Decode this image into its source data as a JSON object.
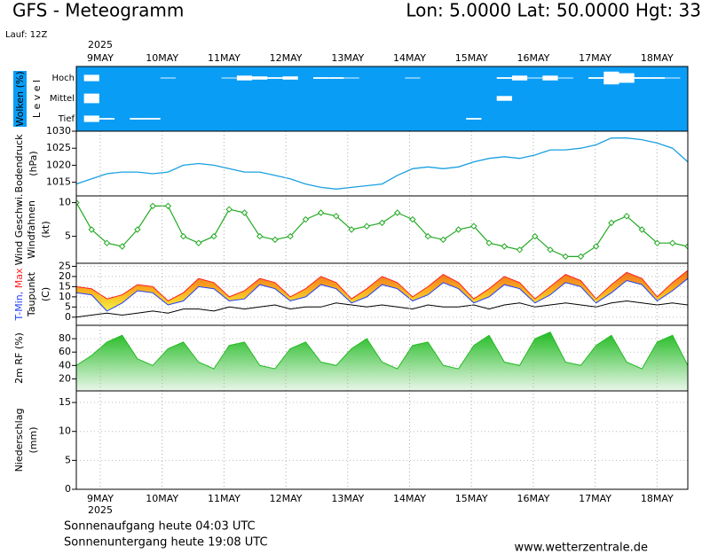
{
  "header": {
    "title": "GFS - Meteogramm",
    "location": "Lon: 5.0000 Lat: 50.0000 Hgt: 33",
    "run": "Lauf: 12Z"
  },
  "time_axis": {
    "year": "2025",
    "dates": [
      "9MAY",
      "10MAY",
      "11MAY",
      "12MAY",
      "13MAY",
      "14MAY",
      "15MAY",
      "16MAY",
      "17MAY",
      "18MAY"
    ]
  },
  "chart_data": [
    {
      "type": "cloud",
      "y_label": "Wolken (%)",
      "level_label": "L e v e l",
      "background": "#0a9df5",
      "color": "#ffffff",
      "series": [
        {
          "name": "Hoch",
          "values": [
            0,
            40,
            0,
            0,
            0,
            0,
            5,
            0,
            0,
            0,
            5,
            30,
            20,
            10,
            20,
            0,
            10,
            10,
            5,
            0,
            0,
            0,
            5,
            0,
            0,
            0,
            0,
            0,
            10,
            30,
            5,
            30,
            5,
            0,
            10,
            80,
            60,
            10,
            10,
            5,
            0
          ]
        },
        {
          "name": "Mittel",
          "values": [
            0,
            60,
            0,
            0,
            0,
            0,
            0,
            0,
            0,
            0,
            0,
            0,
            0,
            0,
            0,
            0,
            0,
            0,
            0,
            0,
            0,
            0,
            0,
            0,
            0,
            0,
            0,
            0,
            30,
            0,
            0,
            0,
            0,
            0,
            0,
            0,
            0,
            0,
            0,
            0,
            0
          ]
        },
        {
          "name": "Tief",
          "values": [
            0,
            40,
            10,
            0,
            10,
            10,
            0,
            0,
            0,
            0,
            0,
            0,
            0,
            0,
            0,
            0,
            0,
            0,
            0,
            0,
            0,
            0,
            0,
            0,
            0,
            0,
            10,
            0,
            0,
            0,
            0,
            0,
            0,
            0,
            0,
            0,
            0,
            0,
            0,
            0,
            0
          ]
        }
      ]
    },
    {
      "type": "line",
      "y_labels": [
        "Bodendruck",
        "(hPa)"
      ],
      "color": "#1aa0e0",
      "values": [
        1014.5,
        1016,
        1017.5,
        1018,
        1018,
        1017.5,
        1018,
        1020,
        1020.5,
        1020,
        1019,
        1018,
        1018,
        1017,
        1016,
        1014.5,
        1013.5,
        1013,
        1013.5,
        1014,
        1014.5,
        1017,
        1019,
        1019.5,
        1019,
        1019.5,
        1021,
        1022,
        1022.5,
        1022,
        1023,
        1024.5,
        1024.5,
        1025,
        1026,
        1028,
        1028,
        1027.5,
        1026.5,
        1025,
        1021
      ],
      "ylim": [
        1011,
        1030
      ],
      "yticks": [
        1015,
        1020,
        1025,
        1030
      ],
      "grid": false
    },
    {
      "type": "line",
      "y_labels": [
        "Windfahnen",
        "(kt)"
      ],
      "markers": true,
      "series": [
        {
          "name": "Wind Geschwi.",
          "color": "#22aa22",
          "values": [
            10,
            6,
            4,
            3.5,
            6,
            9.5,
            9.5,
            5,
            4,
            5,
            9,
            8.5,
            5,
            4.5,
            5,
            7.5,
            8.5,
            8,
            6,
            6.5,
            7,
            8.5,
            7.5,
            5,
            4.5,
            6,
            6.5,
            4,
            3.5,
            3,
            5,
            3,
            2,
            2,
            3.5,
            7,
            8,
            6,
            4,
            4,
            3.5
          ]
        }
      ],
      "ylim": [
        1,
        11
      ],
      "yticks": [
        5,
        10
      ],
      "grid": false
    },
    {
      "type": "range",
      "y_labels": [
        "Taupunkt",
        "(C)"
      ],
      "series": [
        {
          "name": "T-Min,",
          "color": "#2040ff",
          "values": [
            12,
            11,
            3,
            7,
            13,
            12,
            6,
            8,
            15,
            14,
            8,
            9,
            16,
            14,
            8,
            10,
            16,
            14,
            7,
            10,
            16,
            14,
            8,
            11,
            17,
            14,
            7,
            10,
            16,
            14,
            7,
            11,
            17,
            15,
            7,
            12,
            18,
            16,
            8,
            13,
            19
          ]
        },
        {
          "name": "Max",
          "color": "#ff2020",
          "values": [
            15,
            14,
            9,
            11,
            16,
            15,
            8,
            12,
            19,
            17,
            10,
            13,
            19,
            17,
            10,
            14,
            20,
            17,
            9,
            14,
            20,
            17,
            10,
            15,
            21,
            17,
            9,
            14,
            20,
            17,
            9,
            15,
            21,
            18,
            9,
            16,
            22,
            19,
            10,
            17,
            23
          ]
        },
        {
          "name": "Taupunkt",
          "color": "#000000",
          "values": [
            0,
            1,
            2,
            1,
            2,
            3,
            2,
            4,
            4,
            3,
            5,
            4,
            5,
            6,
            4,
            5,
            5,
            7,
            6,
            5,
            6,
            5,
            4,
            6,
            5,
            5,
            6,
            4,
            6,
            7,
            5,
            6,
            7,
            6,
            5,
            7,
            8,
            7,
            6,
            7,
            6
          ]
        }
      ],
      "ylim": [
        -4,
        26.5
      ],
      "yticks": [
        0,
        5,
        10,
        15,
        20,
        25
      ],
      "grid": true
    },
    {
      "type": "area",
      "series": [
        {
          "name": "2m RF (%)",
          "color": "#22bb22",
          "values": [
            40,
            55,
            75,
            85,
            50,
            40,
            65,
            75,
            45,
            35,
            70,
            75,
            40,
            35,
            65,
            75,
            45,
            40,
            65,
            80,
            45,
            35,
            70,
            75,
            40,
            35,
            70,
            85,
            45,
            40,
            80,
            90,
            45,
            40,
            70,
            85,
            45,
            35,
            75,
            85,
            40
          ]
        }
      ],
      "ylim": [
        2,
        100
      ],
      "yticks": [
        20,
        40,
        60,
        80
      ],
      "grid": true
    },
    {
      "type": "bar",
      "y_labels": [
        "Niederschlag",
        "(mm)"
      ],
      "ylim": [
        0,
        17
      ],
      "yticks": [
        0,
        5,
        10,
        15
      ],
      "grid": true
    }
  ],
  "footer": {
    "sunrise": "Sonnenaufgang heute 04:03 UTC",
    "sunset": "Sonnenuntergang heute 19:08 UTC",
    "source": "www.wetterzentrale.de"
  }
}
